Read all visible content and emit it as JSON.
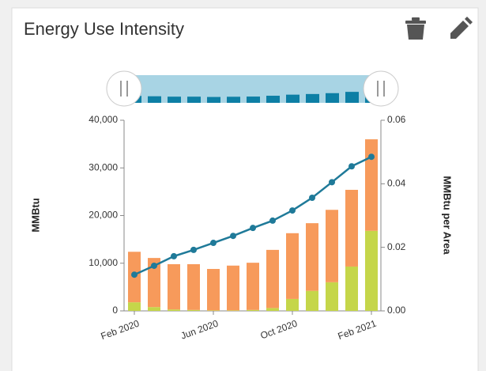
{
  "chart_data": {
    "type": "bar",
    "title": "Energy Use Intensity",
    "categories": [
      "Feb 2020",
      null,
      null,
      null,
      "Jun 2020",
      null,
      null,
      null,
      "Oct 2020",
      null,
      null,
      null,
      "Feb 2021"
    ],
    "stacked": true,
    "series": [
      {
        "name": null,
        "color": "#c5d64a",
        "values": [
          1800,
          800,
          300,
          200,
          100,
          100,
          200,
          600,
          2500,
          4200,
          6000,
          9300,
          16800
        ]
      },
      {
        "name": null,
        "color": "#f79a5b",
        "values": [
          10600,
          10300,
          9500,
          9600,
          8700,
          9400,
          9900,
          12200,
          13800,
          14200,
          15200,
          16100,
          19200
        ]
      },
      {
        "name": null,
        "type": "line",
        "axis": "y2",
        "color": "#1f7a99",
        "values": [
          0.0114,
          0.0142,
          0.0172,
          0.0192,
          0.0214,
          0.0236,
          0.0261,
          0.0284,
          0.0316,
          0.0356,
          0.0405,
          0.0455,
          0.0485
        ]
      }
    ],
    "ylabel": "MMBtu",
    "y2label": "MMBtu per Area",
    "ylim": [
      0,
      40000
    ],
    "yticks": [
      0,
      {
        "value": 10000,
        "label": "10,000"
      },
      {
        "value": 20000,
        "label": "20,000"
      },
      {
        "value": 30000,
        "label": "30,000"
      },
      {
        "value": 40000,
        "label": "40,000"
      }
    ],
    "y2lim": [
      0,
      0.06
    ],
    "y2ticks": [
      {
        "value": 0,
        "label": "0.00"
      },
      {
        "value": 0.02,
        "label": "0.02"
      },
      {
        "value": 0.04,
        "label": "0.04"
      },
      {
        "value": 0.06,
        "label": "0.06"
      }
    ]
  }
}
